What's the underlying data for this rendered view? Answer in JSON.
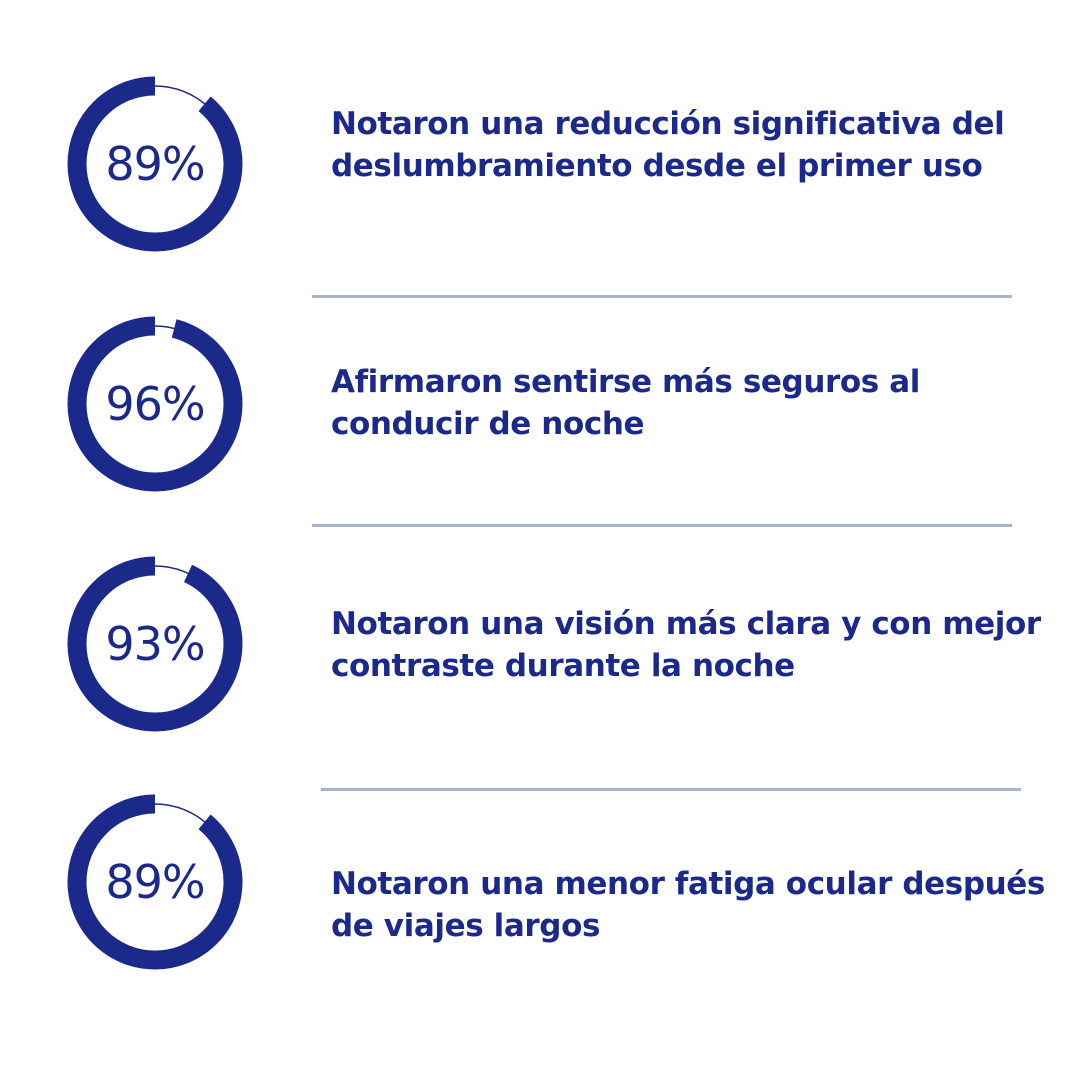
{
  "colors": {
    "ring": "#1b2a8a",
    "text": "#1b2a8a",
    "divider": "#a9b3d0",
    "background": "#ffffff"
  },
  "stats": [
    {
      "percent": 89,
      "value_text": "89%",
      "label": "Notaron una reducción significativa del deslumbramiento desde el primer uso"
    },
    {
      "percent": 96,
      "value_text": "96%",
      "label": "Afirmaron sentirse más seguros al conducir de noche"
    },
    {
      "percent": 93,
      "value_text": "93%",
      "label": "Notaron una visión más clara y con mejor contraste durante la noche"
    },
    {
      "percent": 89,
      "value_text": "89%",
      "label": "Notaron una menor fatiga ocular después de viajes largos"
    }
  ]
}
